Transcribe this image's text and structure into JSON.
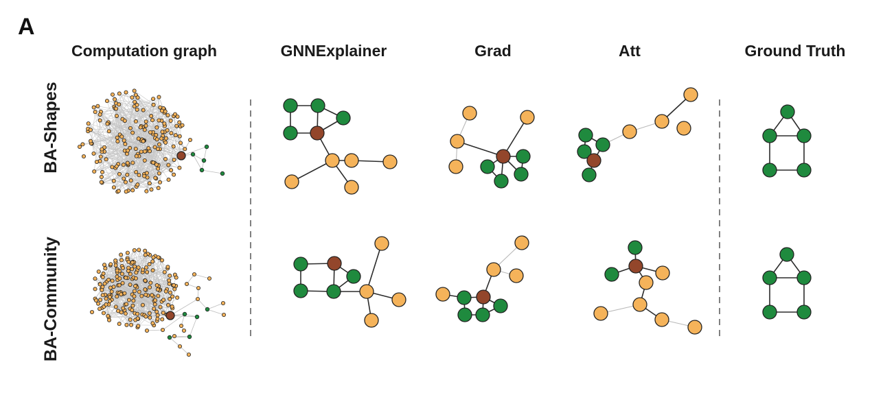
{
  "panel_label": "A",
  "column_titles": {
    "computation": "Computation graph",
    "gnnexplainer": "GNNExplainer",
    "grad": "Grad",
    "att": "Att",
    "ground_truth": "Ground Truth"
  },
  "row_titles": {
    "ba_shapes": "BA-Shapes",
    "ba_community": "BA-Community"
  },
  "colors": {
    "orange": "#f5b35a",
    "green": "#1f8a3e",
    "brown": "#93462b",
    "edge_dark": "#2b2b2b",
    "edge_light": "#b9b9b9",
    "separator": "#808080"
  }
}
